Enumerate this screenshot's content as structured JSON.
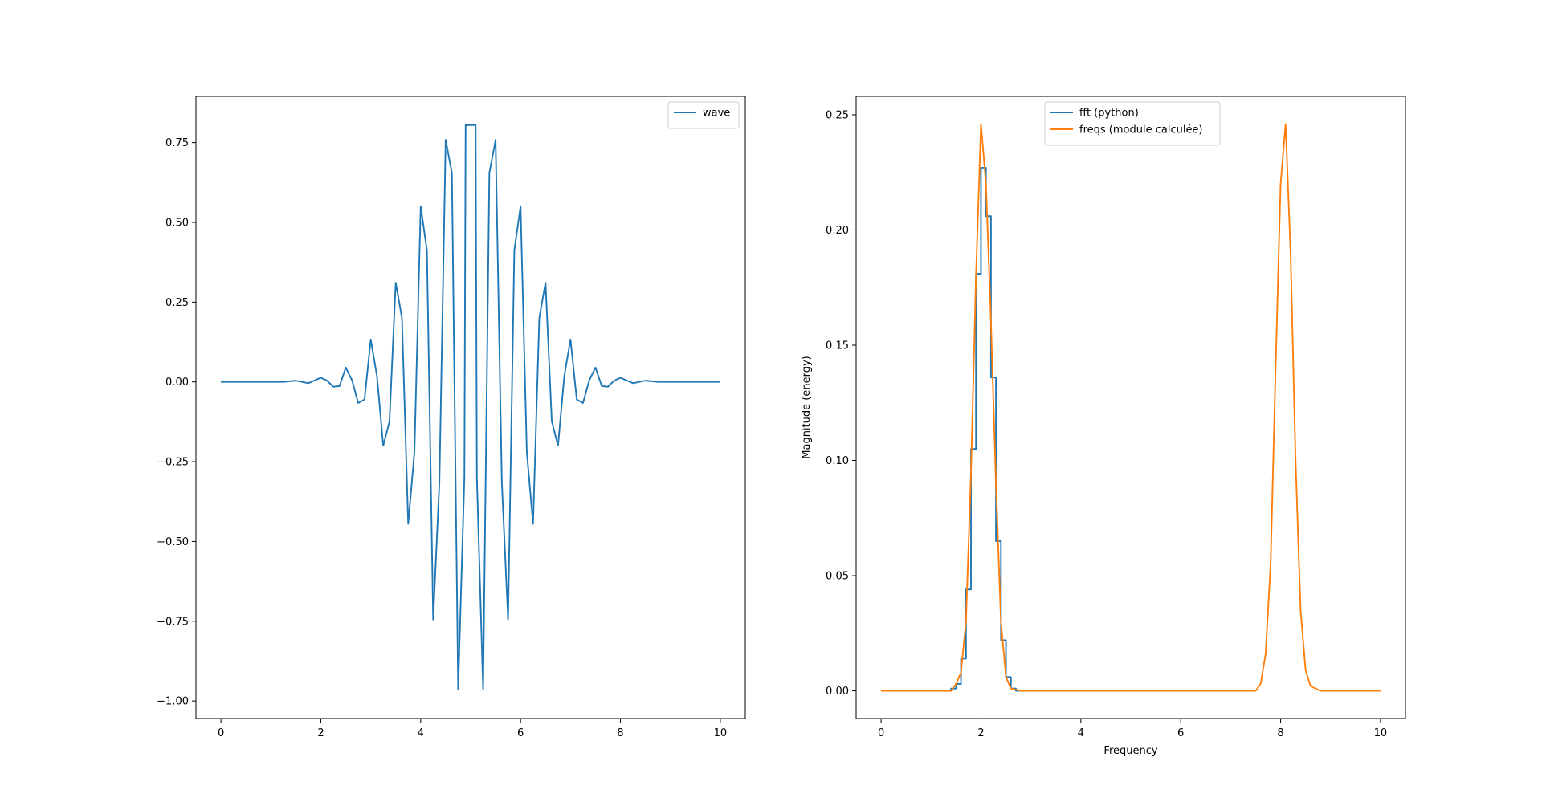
{
  "chart_data": [
    {
      "type": "line",
      "title": "",
      "xlabel": "",
      "ylabel": "",
      "xlim": [
        -0.5,
        10.5
      ],
      "ylim": [
        -1.055,
        0.895
      ],
      "xticks": [
        0,
        2,
        4,
        6,
        8,
        10
      ],
      "yticks": [
        -1.0,
        -0.75,
        -0.5,
        -0.25,
        0.0,
        0.25,
        0.5,
        0.75
      ],
      "xtick_labels": [
        "0",
        "2",
        "4",
        "6",
        "8",
        "10"
      ],
      "ytick_labels": [
        "−1.00",
        "−0.75",
        "−0.50",
        "−0.25",
        "0.00",
        "0.25",
        "0.50",
        "0.75"
      ],
      "grid": false,
      "legend_position": "top-right",
      "series": [
        {
          "name": "wave",
          "color": "#1f77b4",
          "step": false,
          "x": [
            0.0,
            0.25,
            0.5,
            0.75,
            1.0,
            1.25,
            1.5,
            1.75,
            2.0,
            2.125,
            2.25,
            2.375,
            2.5,
            2.625,
            2.75,
            2.875,
            3.0,
            3.125,
            3.25,
            3.375,
            3.5,
            3.625,
            3.75,
            3.875,
            4.0,
            4.125,
            4.25,
            4.375,
            4.5,
            4.625,
            4.75,
            4.875,
            4.9,
            5.1,
            5.125,
            5.25,
            5.375,
            5.5,
            5.625,
            5.75,
            5.875,
            6.0,
            6.125,
            6.25,
            6.375,
            6.5,
            6.625,
            6.75,
            6.875,
            7.0,
            7.125,
            7.25,
            7.375,
            7.5,
            7.625,
            7.75,
            7.875,
            8.0,
            8.25,
            8.5,
            8.75,
            9.0,
            9.5,
            10.0
          ],
          "y": [
            0.0,
            0.0,
            0.0,
            0.0,
            0.0,
            0.0,
            0.004,
            -0.004,
            0.013,
            0.004,
            -0.015,
            -0.013,
            0.045,
            0.005,
            -0.066,
            -0.055,
            0.133,
            0.018,
            -0.2,
            -0.124,
            0.311,
            0.2,
            -0.445,
            -0.22,
            0.551,
            0.412,
            -0.745,
            -0.315,
            0.759,
            0.655,
            -0.965,
            -0.3,
            0.805,
            0.805,
            -0.3,
            -0.965,
            0.655,
            0.759,
            -0.315,
            -0.745,
            0.412,
            0.551,
            -0.22,
            -0.445,
            0.2,
            0.311,
            -0.124,
            -0.2,
            0.018,
            0.133,
            -0.055,
            -0.066,
            0.005,
            0.045,
            -0.013,
            -0.015,
            0.004,
            0.013,
            -0.004,
            0.004,
            0.0,
            0.0,
            0.0,
            0.0
          ]
        }
      ]
    },
    {
      "type": "line",
      "title": "",
      "xlabel": "Frequency",
      "ylabel": "Magnitude (energy)",
      "xlim": [
        -0.5,
        10.5
      ],
      "ylim": [
        -0.012,
        0.258
      ],
      "xticks": [
        0,
        2,
        4,
        6,
        8,
        10
      ],
      "yticks": [
        0.0,
        0.05,
        0.1,
        0.15,
        0.2,
        0.25
      ],
      "xtick_labels": [
        "0",
        "2",
        "4",
        "6",
        "8",
        "10"
      ],
      "ytick_labels": [
        "0.00",
        "0.05",
        "0.10",
        "0.15",
        "0.20",
        "0.25"
      ],
      "grid": false,
      "legend_position": "top-center",
      "series": [
        {
          "name": "fft (python)",
          "color": "#1f77b4",
          "step": true,
          "x": [
            0.0,
            1.3,
            1.4,
            1.5,
            1.6,
            1.7,
            1.8,
            1.9,
            2.0,
            2.1,
            2.2,
            2.3,
            2.4,
            2.5,
            2.6,
            2.7,
            2.8,
            5.0
          ],
          "y": [
            0.0,
            0.0,
            0.001,
            0.003,
            0.014,
            0.044,
            0.105,
            0.181,
            0.227,
            0.206,
            0.136,
            0.065,
            0.022,
            0.006,
            0.001,
            0.0,
            0.0,
            0.0
          ]
        },
        {
          "name": "freqs (module calculée)",
          "color": "#ff7f0e",
          "step": false,
          "x": [
            0.0,
            1.2,
            1.4,
            1.5,
            1.6,
            1.7,
            1.8,
            1.9,
            2.0,
            2.1,
            2.2,
            2.3,
            2.4,
            2.5,
            2.6,
            2.8,
            3.0,
            7.3,
            7.5,
            7.6,
            7.7,
            7.8,
            7.9,
            8.0,
            8.1,
            8.2,
            8.3,
            8.4,
            8.5,
            8.6,
            8.8,
            10.0
          ],
          "y": [
            0.0,
            0.0,
            0.0,
            0.003,
            0.008,
            0.03,
            0.095,
            0.18,
            0.246,
            0.22,
            0.16,
            0.09,
            0.03,
            0.006,
            0.001,
            0.0,
            0.0,
            0.0,
            0.0,
            0.003,
            0.016,
            0.055,
            0.14,
            0.22,
            0.246,
            0.19,
            0.1,
            0.035,
            0.009,
            0.002,
            0.0,
            0.0
          ]
        }
      ]
    }
  ]
}
